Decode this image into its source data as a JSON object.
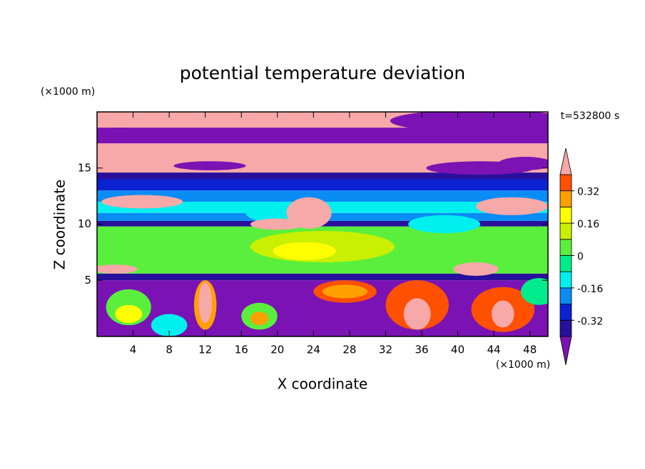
{
  "chart_data": {
    "type": "contour",
    "title": "potential temperature deviation",
    "x_label": "X coordinate",
    "y_label": "Z coordinate",
    "x_unit": "(×1000 m)",
    "y_unit": "(×1000 m)",
    "time_label": "t=532800 s",
    "xlim": [
      0,
      50
    ],
    "xticks": [
      4,
      8,
      12,
      16,
      20,
      24,
      28,
      32,
      36,
      40,
      44,
      48
    ],
    "ylim": [
      0,
      20
    ],
    "yticks": [
      5,
      10,
      15
    ],
    "colorbar": {
      "levels": [
        -0.4,
        -0.32,
        -0.24,
        -0.16,
        -0.08,
        0,
        0.08,
        0.16,
        0.24,
        0.32,
        0.4
      ],
      "colors": [
        "#7a12b4",
        "#28109c",
        "#0a22d2",
        "#0a8cf5",
        "#00f0f0",
        "#00ec8c",
        "#5aef3c",
        "#c8f000",
        "#ffff00",
        "#ffa000",
        "#ff5000",
        "#f7a8a8"
      ],
      "ticks": [
        -0.32,
        -0.16,
        0,
        0.16,
        0.32
      ]
    }
  }
}
